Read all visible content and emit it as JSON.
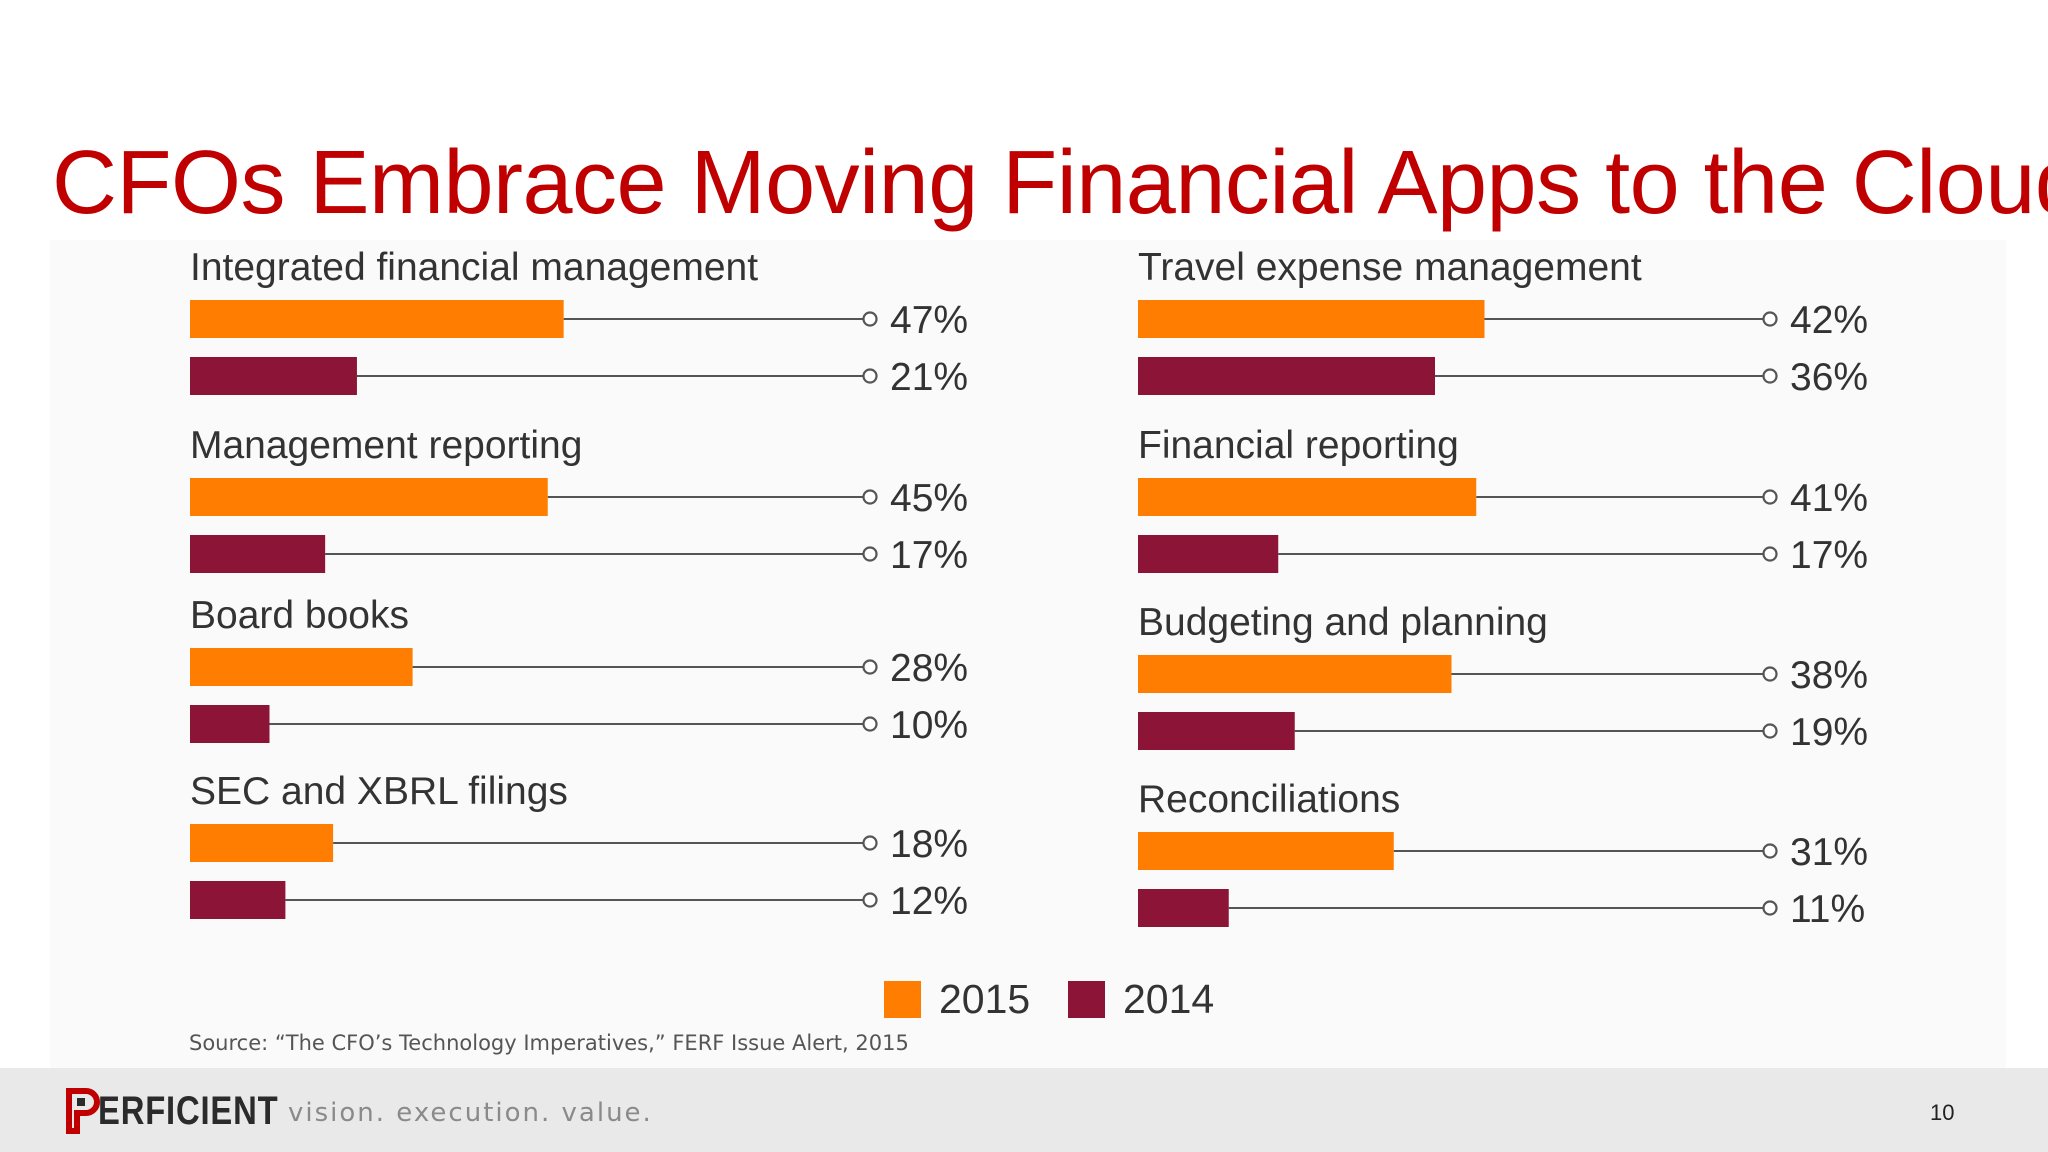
{
  "slide": {
    "title": "CFOs Embrace Moving Financial Apps to the Cloud",
    "page_number": "10",
    "colors": {
      "title": "#c00000",
      "series_2015": "#ff7d00",
      "series_2014": "#8c1537",
      "leader_line": "#555555"
    }
  },
  "chart_data": {
    "type": "bar",
    "orientation": "horizontal",
    "value_unit": "%",
    "xlim": [
      0,
      100
    ],
    "series_names": [
      "2015",
      "2014"
    ],
    "legend_position": "bottom-center",
    "panels": [
      {
        "categories": [
          "Integrated financial management",
          "Management reporting",
          "Board books",
          "SEC and XBRL filings"
        ],
        "series": [
          {
            "name": "2015",
            "values": [
              47,
              45,
              28,
              18
            ],
            "labels": [
              "47%",
              "45%",
              "28%",
              "18%"
            ]
          },
          {
            "name": "2014",
            "values": [
              21,
              17,
              10,
              12
            ],
            "labels": [
              "21%",
              "17%",
              "10%",
              "12%"
            ]
          }
        ]
      },
      {
        "categories": [
          "Travel expense management",
          "Financial reporting",
          "Budgeting and planning",
          "Reconciliations"
        ],
        "series": [
          {
            "name": "2015",
            "values": [
              42,
              41,
              38,
              31
            ],
            "labels": [
              "42%",
              "41%",
              "38%",
              "31%"
            ]
          },
          {
            "name": "2014",
            "values": [
              36,
              17,
              19,
              11
            ],
            "labels": [
              "36%",
              "17%",
              "19%",
              "11%"
            ]
          }
        ]
      }
    ],
    "source": "Source: “The CFO’s Technology Imperatives,” FERF Issue Alert, 2015"
  },
  "footer": {
    "logo_text": "ERFICIENT",
    "logo_icon": "perficient-p-logo-icon",
    "tagline": "vision.  execution.  value."
  }
}
